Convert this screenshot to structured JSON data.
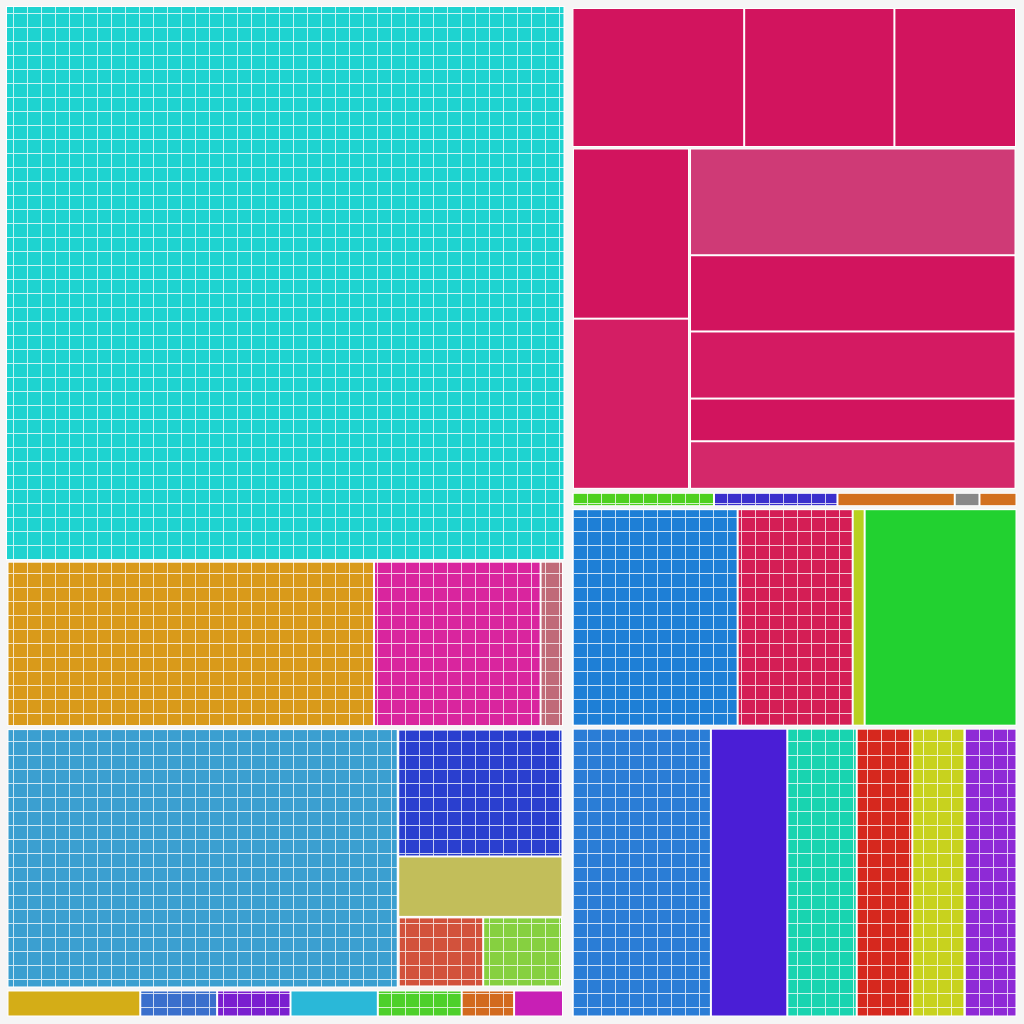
{
  "chart_data": {
    "type": "treemap",
    "children": [
      {
        "children": [
          {
            "value": 303.6,
            "color": "#1ed3d0",
            "grid": true
          },
          {
            "children": [
              {
                "value": 60.5,
                "color": "#d99a1a",
                "grid": true
              },
              {
                "value": 27.5,
                "color": "#d9259e",
                "grid": true
              },
              {
                "value": 3.7,
                "color": "#c06a78",
                "grid": true
              }
            ]
          },
          {
            "children": [
              {
                "value": 100.6,
                "color": "#3b9fd0",
                "grid": true
              },
              {
                "children": [
                  {
                    "value": 21,
                    "color": "#2a3fcf",
                    "grid": true
                  },
                  {
                    "value": 10,
                    "color": "#c2be5a"
                  },
                  {
                    "children": [
                      {
                        "value": 6,
                        "color": "#d2523c",
                        "grid": true
                      },
                      {
                        "value": 5.6,
                        "color": "#86d040",
                        "grid": true
                      }
                    ]
                  }
                ]
              }
            ]
          },
          {
            "children": [
              {
                "value": 3.8,
                "color": "#d4ad17"
              },
              {
                "value": 2.2,
                "color": "#3a6fcc",
                "grid": true
              },
              {
                "value": 2.1,
                "color": "#7a1fcf",
                "grid": true
              },
              {
                "value": 2.5,
                "color": "#2ab8d8"
              },
              {
                "value": 2.4,
                "color": "#4dd02a",
                "grid": true
              },
              {
                "value": 1.5,
                "color": "#d26a1e",
                "grid": true
              },
              {
                "value": 1.4,
                "color": "#c81fb5"
              }
            ]
          }
        ]
      },
      {
        "children": [
          {
            "children": [
              {
                "children": [
                  {
                    "value": 24,
                    "color": "#d2145e"
                  },
                  {
                    "value": 21,
                    "color": "#d2145e"
                  },
                  {
                    "value": 17,
                    "color": "#d2145e"
                  }
                ]
              },
              {
                "children": [
                  {
                    "children": [
                      {
                        "value": 20,
                        "color": "#d2145e"
                      },
                      {
                        "value": 20,
                        "color": "#d41e64"
                      }
                    ]
                  },
                  {
                    "children": [
                      {
                        "value": 35,
                        "color": "#cf3a76"
                      },
                      {
                        "value": 25,
                        "color": "#d2145e"
                      },
                      {
                        "value": 22,
                        "color": "#d41a62"
                      },
                      {
                        "value": 14,
                        "color": "#d2145e"
                      },
                      {
                        "value": 15.6,
                        "color": "#d4286a"
                      }
                    ]
                  }
                ]
              }
            ]
          },
          {
            "children": [
              {
                "value": 2.3,
                "color": "#4ed01e",
                "grid": true
              },
              {
                "value": 2,
                "color": "#3b2fcc",
                "grid": true
              },
              {
                "value": 1.9,
                "color": "#d2701e"
              },
              {
                "value": 0.4,
                "color": "#888888"
              },
              {
                "value": 0.6,
                "color": "#d2701e"
              }
            ]
          },
          {
            "children": [
              {
                "value": 36,
                "color": "#1e7fd6",
                "grid": true
              },
              {
                "value": 25,
                "color": "#d41e55",
                "grid": true
              },
              {
                "value": 2.6,
                "color": "#b8d020"
              },
              {
                "value": 33,
                "color": "#22d130"
              }
            ]
          },
          {
            "children": [
              {
                "value": 40,
                "color": "#2a7dd6",
                "grid": true
              },
              {
                "value": 22,
                "color": "#4a1ed6"
              },
              {
                "value": 20,
                "color": "#18d4b0",
                "grid": true
              },
              {
                "value": 16,
                "color": "#d6281e",
                "grid": true
              },
              {
                "value": 15,
                "color": "#c8d21e",
                "grid": true
              },
              {
                "value": 15,
                "color": "#8e2ad6",
                "grid": true
              }
            ]
          }
        ]
      }
    ]
  }
}
